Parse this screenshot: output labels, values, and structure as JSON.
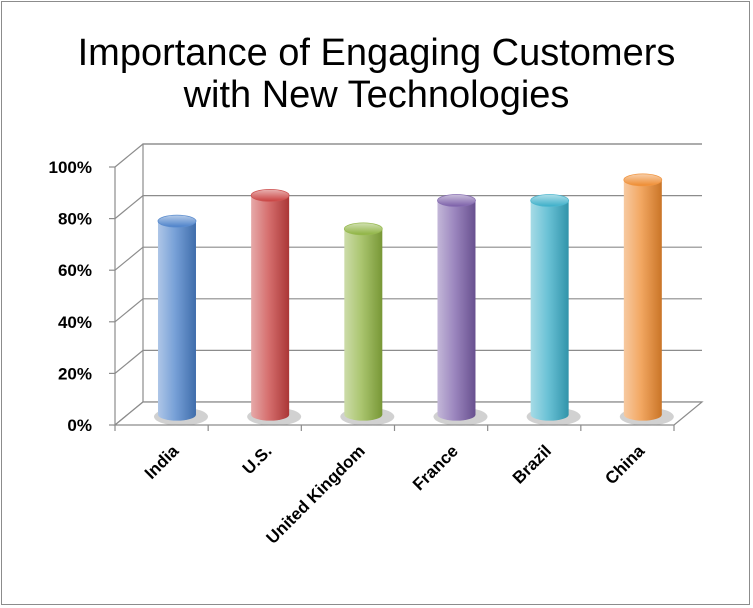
{
  "chart_data": {
    "type": "bar",
    "title_lines": [
      "Importance of Engaging Customers",
      "with New Technologies"
    ],
    "categories": [
      "India",
      "U.S.",
      "United Kingdom",
      "France",
      "Brazil",
      "China"
    ],
    "values": [
      75,
      85,
      72,
      83,
      83,
      91
    ],
    "y_tick_labels": [
      "0%",
      "20%",
      "40%",
      "60%",
      "80%",
      "100%"
    ],
    "ylim": [
      0,
      100
    ],
    "xlabel": "",
    "ylabel": "",
    "grid": true,
    "legend": "none",
    "colors": [
      "#4a80c9",
      "#c8403f",
      "#8db23f",
      "#7a5ea8",
      "#3aaec8",
      "#ee8a2e"
    ]
  }
}
